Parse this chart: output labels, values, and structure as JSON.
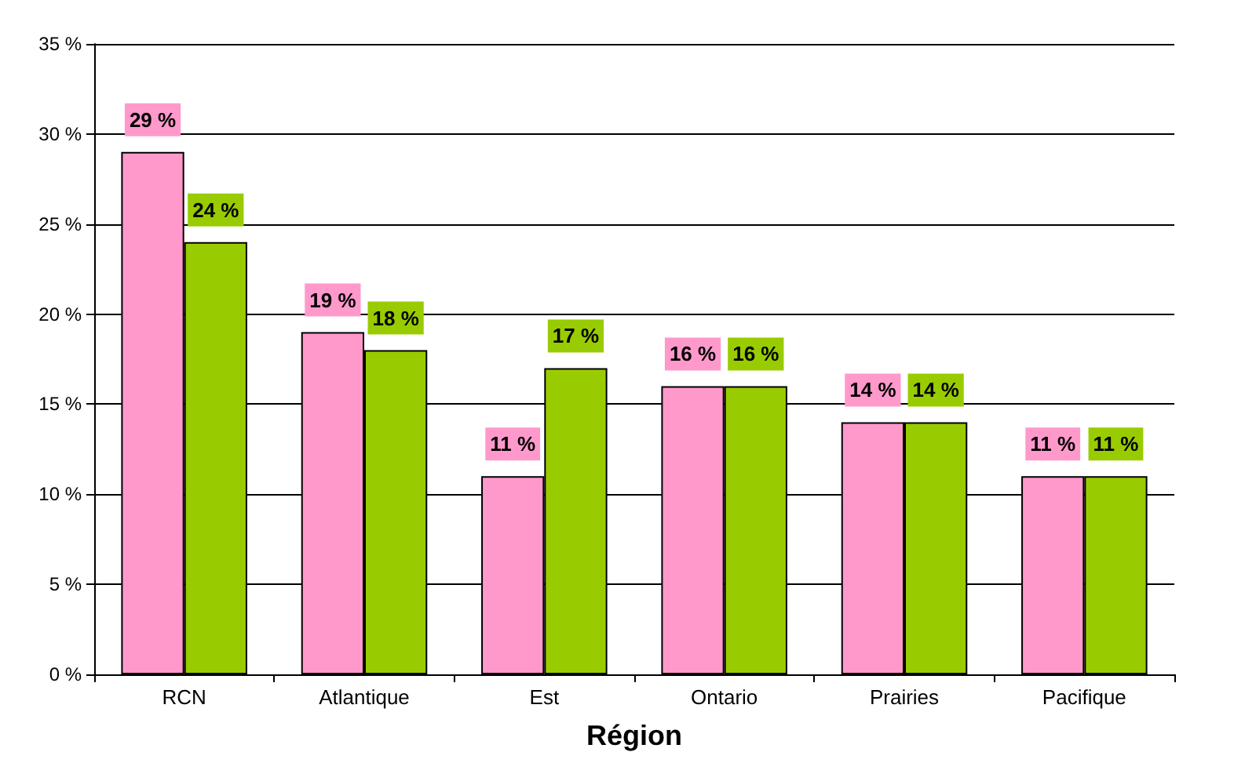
{
  "chart_data": {
    "type": "bar",
    "xlabel": "Région",
    "categories": [
      "RCN",
      "Atlantique",
      "Est",
      "Ontario",
      "Prairies",
      "Pacifique"
    ],
    "series": [
      {
        "color": "#ff99cc",
        "values": [
          29,
          19,
          11,
          16,
          14,
          11
        ],
        "value_labels": [
          "29 %",
          "19 %",
          "11 %",
          "16 %",
          "14 %",
          "11 %"
        ]
      },
      {
        "color": "#99cc00",
        "values": [
          24,
          18,
          17,
          16,
          14,
          11
        ],
        "value_labels": [
          "24 %",
          "18 %",
          "17 %",
          "16 %",
          "14 %",
          "11 %"
        ]
      }
    ],
    "ylim": [
      0,
      35
    ],
    "yticks": [
      {
        "value": 0,
        "label": "0 %"
      },
      {
        "value": 5,
        "label": "5 %"
      },
      {
        "value": 10,
        "label": "10 %"
      },
      {
        "value": 15,
        "label": "15 %"
      },
      {
        "value": 20,
        "label": "20 %"
      },
      {
        "value": 25,
        "label": "25 %"
      },
      {
        "value": 30,
        "label": "30 %"
      },
      {
        "value": 35,
        "label": "35 %"
      }
    ],
    "grid": "y"
  }
}
